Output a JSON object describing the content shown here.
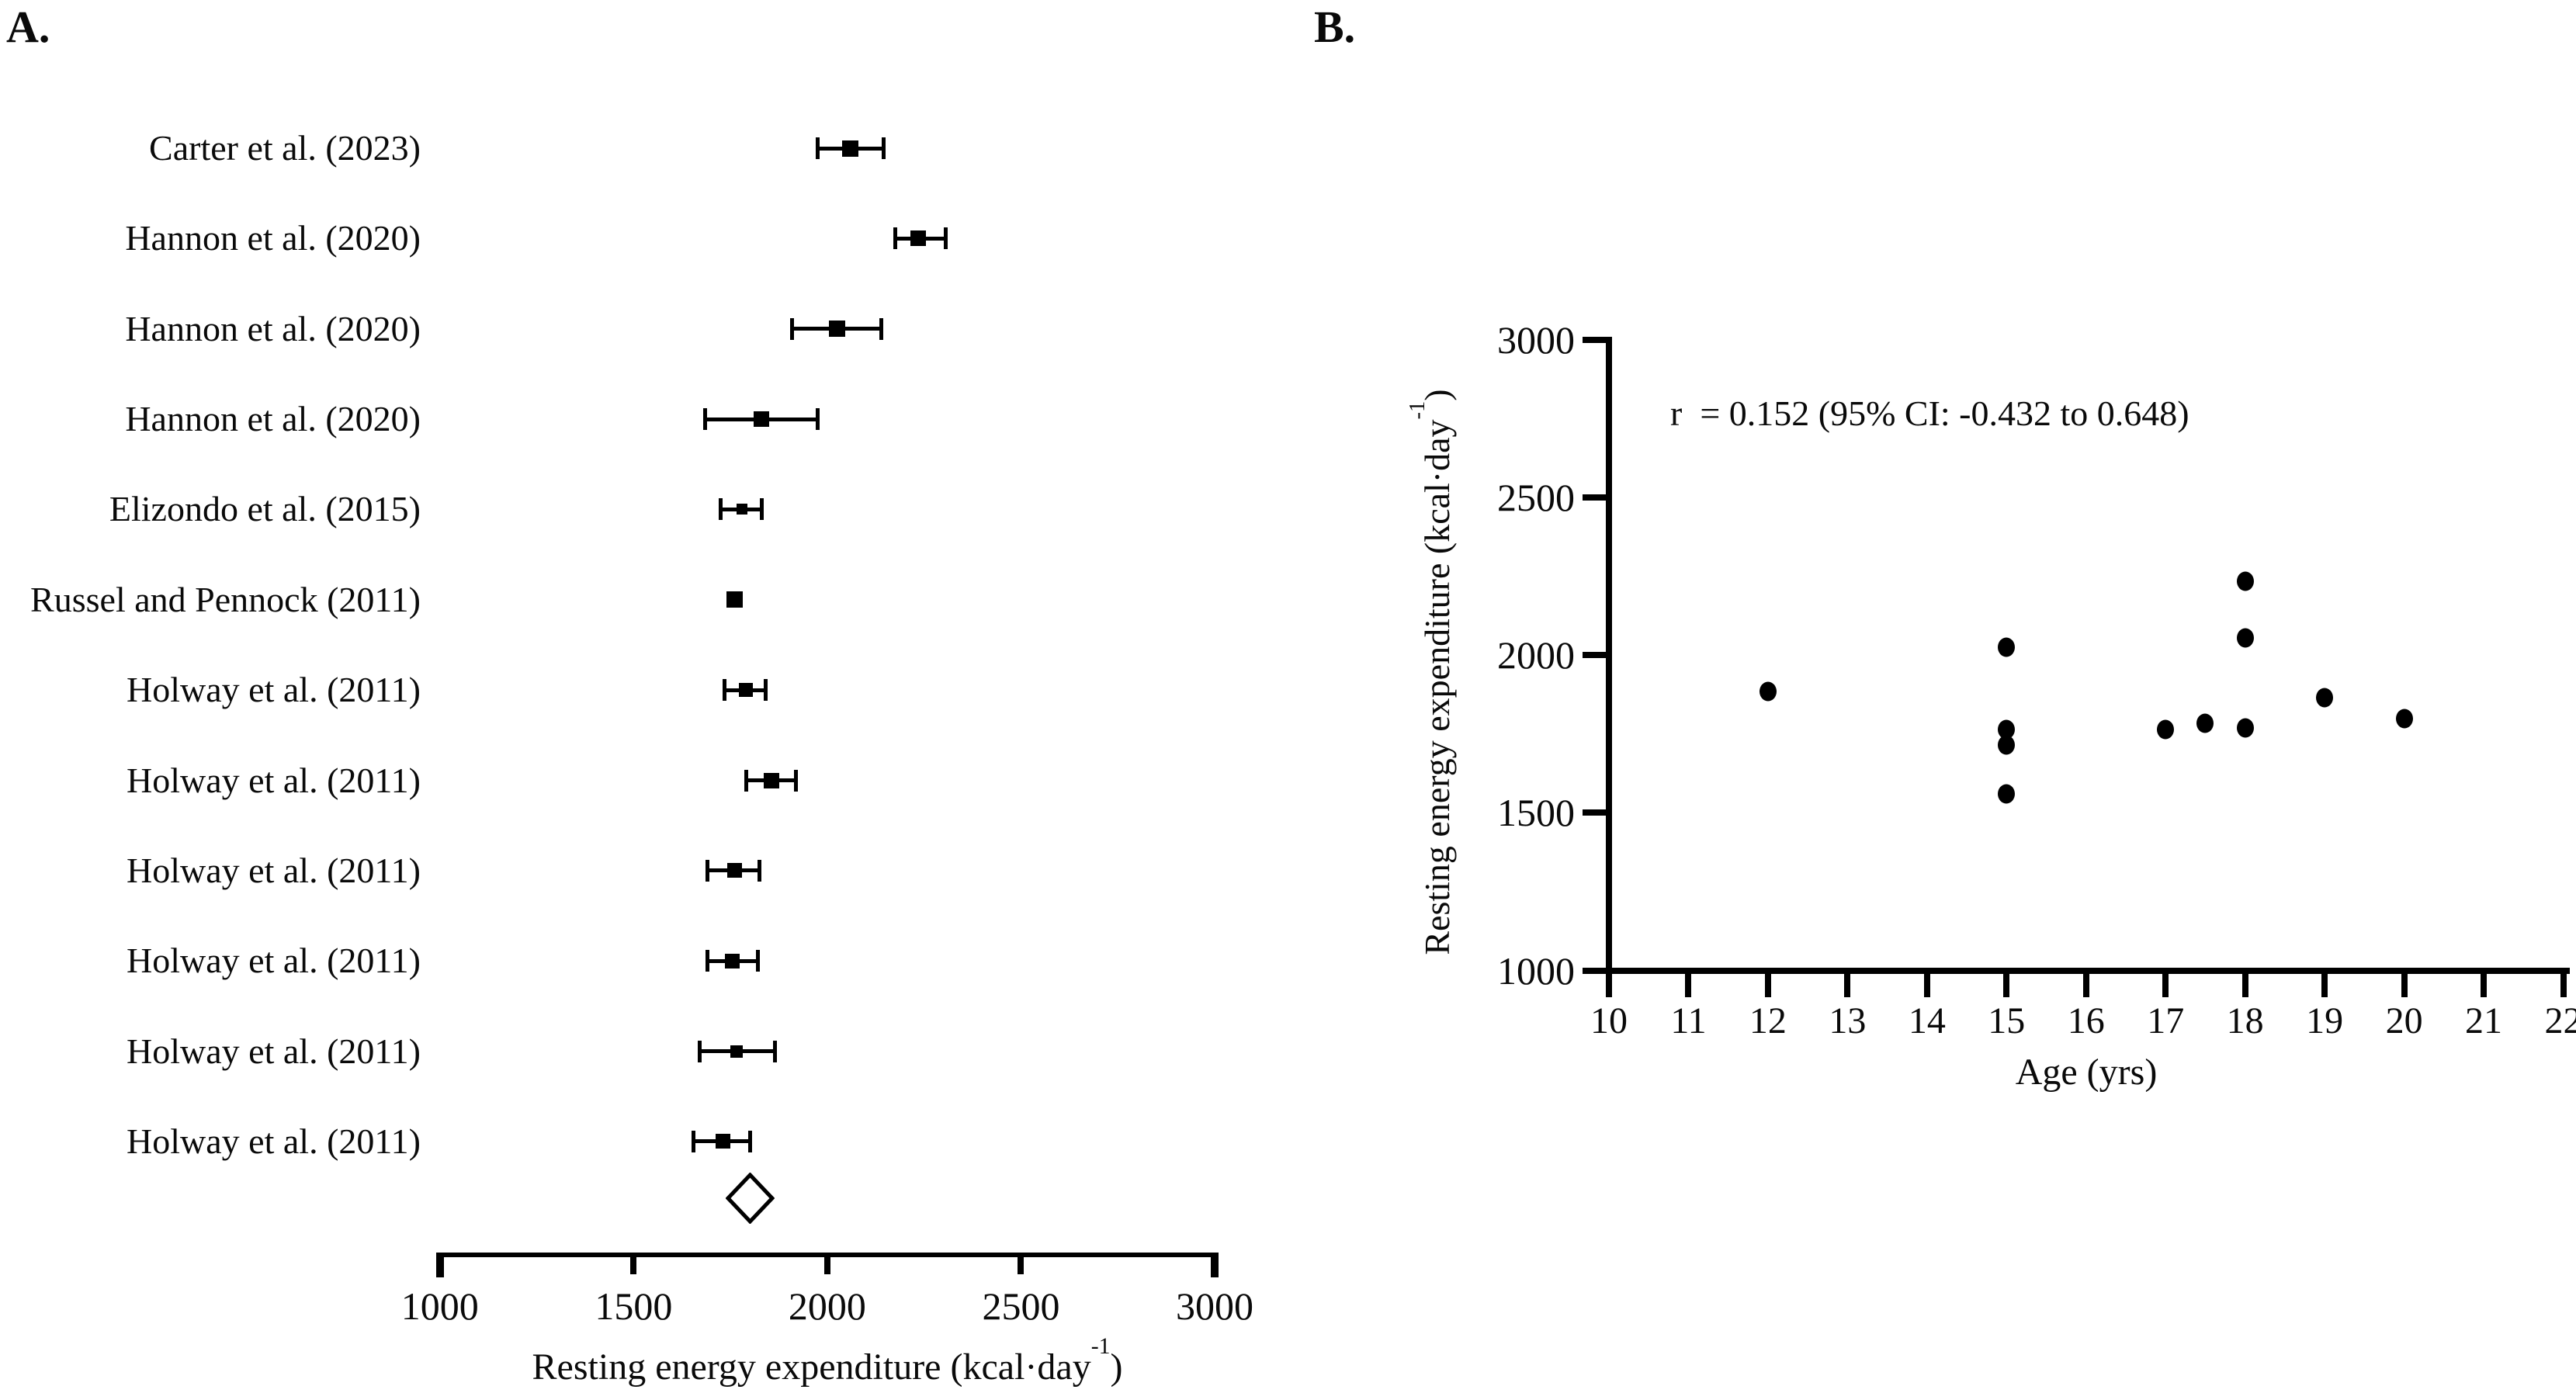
{
  "figure": {
    "panel_a_label": "A.",
    "panel_b_label": "B."
  },
  "chart_data": [
    {
      "type": "forest",
      "panel": "A",
      "xlabel_main": "Resting energy expenditure (kcal·day",
      "xlabel_sup": "-1",
      "xlabel_end": ")",
      "xlim": [
        1000,
        3000
      ],
      "x_ticks": [
        1000,
        1500,
        2000,
        2500,
        3000
      ],
      "grid": false,
      "studies": [
        {
          "label": "Carter et al. (2023)",
          "mean": 2060,
          "ci_low": 1975,
          "ci_high": 2145,
          "marker_size": 21
        },
        {
          "label": "Hannon et al. (2020)",
          "mean": 2235,
          "ci_low": 2175,
          "ci_high": 2305,
          "marker_size": 20
        },
        {
          "label": "Hannon et al. (2020)",
          "mean": 2025,
          "ci_low": 1910,
          "ci_high": 2140,
          "marker_size": 21
        },
        {
          "label": "Hannon et al. (2020)",
          "mean": 1830,
          "ci_low": 1685,
          "ci_high": 1975,
          "marker_size": 20
        },
        {
          "label": "Elizondo et al. (2015)",
          "mean": 1780,
          "ci_low": 1725,
          "ci_high": 1830,
          "marker_size": 14
        },
        {
          "label": "Russel and Pennock (2011)",
          "mean": 1760,
          "ci_low": null,
          "ci_high": null,
          "marker_size": 21
        },
        {
          "label": "Holway et al. (2011)",
          "mean": 1790,
          "ci_low": 1735,
          "ci_high": 1840,
          "marker_size": 18
        },
        {
          "label": "Holway et al. (2011)",
          "mean": 1855,
          "ci_low": 1790,
          "ci_high": 1920,
          "marker_size": 20
        },
        {
          "label": "Holway et al. (2011)",
          "mean": 1760,
          "ci_low": 1690,
          "ci_high": 1825,
          "marker_size": 19
        },
        {
          "label": "Holway et al. (2011)",
          "mean": 1755,
          "ci_low": 1690,
          "ci_high": 1820,
          "marker_size": 19
        },
        {
          "label": "Holway et al. (2011)",
          "mean": 1765,
          "ci_low": 1670,
          "ci_high": 1865,
          "marker_size": 16
        },
        {
          "label": "Holway et al. (2011)",
          "mean": 1730,
          "ci_low": 1655,
          "ci_high": 1800,
          "marker_size": 19
        }
      ],
      "pooled": {
        "mean": 1800,
        "ci_low": 1750,
        "ci_high": 1860
      }
    },
    {
      "type": "scatter",
      "panel": "B",
      "annotation": "r  = 0.152 (95% CI: -0.432 to 0.648)",
      "xlabel": "Age (yrs)",
      "ylabel_main": "Resting energy expenditure (kcal·day",
      "ylabel_sup": "-1",
      "ylabel_end": ")",
      "xlim": [
        10,
        22
      ],
      "ylim": [
        1000,
        3000
      ],
      "x_ticks": [
        10,
        11,
        12,
        13,
        14,
        15,
        16,
        17,
        18,
        19,
        20,
        21,
        22
      ],
      "y_ticks": [
        1000,
        1500,
        2000,
        2500,
        3000
      ],
      "grid": false,
      "legend": false,
      "points": [
        {
          "age": 12,
          "ree": 1885
        },
        {
          "age": 15,
          "ree": 2025
        },
        {
          "age": 15,
          "ree": 1765
        },
        {
          "age": 15,
          "ree": 1715
        },
        {
          "age": 15,
          "ree": 1560
        },
        {
          "age": 17,
          "ree": 1765
        },
        {
          "age": 17.5,
          "ree": 1785
        },
        {
          "age": 18,
          "ree": 2235
        },
        {
          "age": 18,
          "ree": 2055
        },
        {
          "age": 18,
          "ree": 1770
        },
        {
          "age": 19,
          "ree": 1865
        },
        {
          "age": 20,
          "ree": 1800
        }
      ]
    }
  ]
}
